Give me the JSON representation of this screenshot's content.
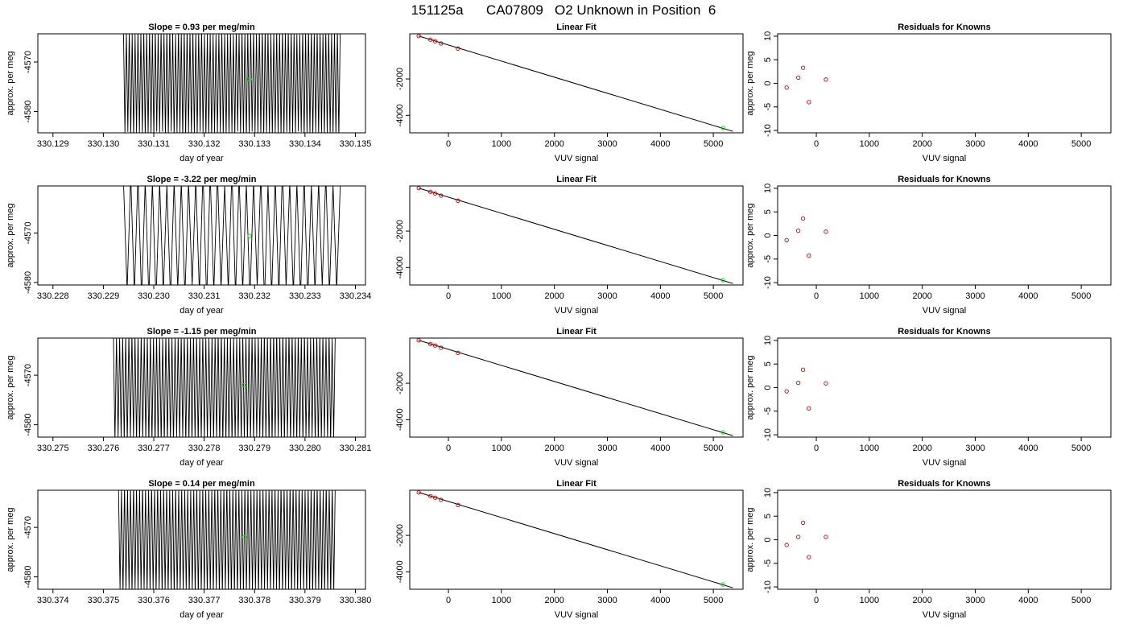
{
  "page": {
    "title": "151125a      CA07809   O2 Unknown in Position  6"
  },
  "chart_data": [
    {
      "type": "line",
      "title": "Slope =  0.93  per meg/min",
      "xlabel": "day of year",
      "ylabel": "approx. per meg",
      "xlim": [
        330.1287,
        330.1352
      ],
      "ylim": [
        -4584.3,
        -4564.3
      ],
      "xticks": [
        "330.129",
        "330.130",
        "330.131",
        "330.132",
        "330.133",
        "330.134",
        "330.135"
      ],
      "yticks": [
        "-4570",
        "-4580"
      ],
      "signal": {
        "x_start": 330.1304,
        "x_end": 330.1347,
        "cycles": 75,
        "low": -4584,
        "high": -4564.5,
        "jitter": 1.6,
        "seed": 11
      },
      "highlight_point": {
        "x": 330.1329,
        "y": -4573.5,
        "color": "#00ee00"
      }
    },
    {
      "type": "scatter",
      "title": "Linear Fit",
      "xlabel": "VUV signal",
      "ylabel": "",
      "xlim": [
        -730,
        5560
      ],
      "ylim": [
        -4960,
        480
      ],
      "xticks": [
        "0",
        "1000",
        "2000",
        "3000",
        "4000",
        "5000"
      ],
      "yticks": [
        "-2000",
        "-4000"
      ],
      "points": {
        "x": [
          -560,
          -340,
          -250,
          -140,
          180
        ],
        "y": [
          360,
          160,
          70,
          -50,
          -330
        ],
        "color": "#cc0000"
      },
      "fit_line": {
        "x": [
          -560,
          5370
        ],
        "y": [
          360,
          -4880
        ]
      },
      "highlight_point": {
        "x": 5180,
        "y": -4700,
        "color": "#00ee00"
      }
    },
    {
      "type": "scatter",
      "title": "Residuals for Knowns",
      "xlabel": "VUV signal",
      "ylabel": "approx. per meg",
      "xlim": [
        -730,
        5560
      ],
      "ylim": [
        -10.5,
        10.5
      ],
      "xticks": [
        "0",
        "1000",
        "2000",
        "3000",
        "4000",
        "5000"
      ],
      "yticks": [
        "10",
        "5",
        "0",
        "-5",
        "-10"
      ],
      "points": {
        "x": [
          -560,
          -340,
          -250,
          -140,
          180
        ],
        "y": [
          -0.9,
          1.2,
          3.3,
          -4.0,
          0.8
        ],
        "color": "#cc0000"
      }
    },
    {
      "type": "line",
      "title": "Slope =  -3.22  per meg/min",
      "xlabel": "day of year",
      "ylabel": "approx. per meg",
      "xlim": [
        330.2277,
        330.2342
      ],
      "ylim": [
        -4580.5,
        -4560.5
      ],
      "xticks": [
        "330.228",
        "330.229",
        "330.230",
        "330.231",
        "330.232",
        "330.233",
        "330.234"
      ],
      "yticks": [
        "-4570",
        "-4580"
      ],
      "signal": {
        "x_start": 330.2294,
        "x_end": 330.2337,
        "cycles": 30,
        "low": -4580.5,
        "high": -4560.5,
        "jitter": 3.5,
        "seed": 23
      },
      "highlight_point": {
        "x": 330.2319,
        "y": -4570.6,
        "color": "#00ee00"
      }
    },
    {
      "type": "scatter",
      "title": "Linear Fit",
      "xlabel": "VUV signal",
      "ylabel": "",
      "xlim": [
        -730,
        5560
      ],
      "ylim": [
        -4960,
        480
      ],
      "xticks": [
        "0",
        "1000",
        "2000",
        "3000",
        "4000",
        "5000"
      ],
      "yticks": [
        "-2000",
        "-4000"
      ],
      "points": {
        "x": [
          -560,
          -340,
          -250,
          -140,
          180
        ],
        "y": [
          360,
          160,
          70,
          -50,
          -330
        ],
        "color": "#cc0000"
      },
      "fit_line": {
        "x": [
          -560,
          5370
        ],
        "y": [
          360,
          -4880
        ]
      },
      "highlight_point": {
        "x": 5180,
        "y": -4700,
        "color": "#00ee00"
      }
    },
    {
      "type": "scatter",
      "title": "Residuals for Knowns",
      "xlabel": "VUV signal",
      "ylabel": "approx. per meg",
      "xlim": [
        -730,
        5560
      ],
      "ylim": [
        -10.5,
        10.5
      ],
      "xticks": [
        "0",
        "1000",
        "2000",
        "3000",
        "4000",
        "5000"
      ],
      "yticks": [
        "10",
        "5",
        "0",
        "-5",
        "-10"
      ],
      "points": {
        "x": [
          -560,
          -340,
          -250,
          -140,
          180
        ],
        "y": [
          -1.0,
          1.0,
          3.6,
          -4.3,
          0.8
        ],
        "color": "#cc0000"
      }
    },
    {
      "type": "line",
      "title": "Slope =  -1.15  per meg/min",
      "xlabel": "day of year",
      "ylabel": "approx. per meg",
      "xlim": [
        330.2747,
        330.2812
      ],
      "ylim": [
        -4582.5,
        -4562.5
      ],
      "xticks": [
        "330.275",
        "330.276",
        "330.277",
        "330.278",
        "330.279",
        "330.280",
        "330.281"
      ],
      "yticks": [
        "-4570",
        "-4580"
      ],
      "signal": {
        "x_start": 330.2762,
        "x_end": 330.2806,
        "cycles": 72,
        "low": -4582.5,
        "high": -4562.5,
        "jitter": 1.8,
        "seed": 37
      },
      "highlight_point": {
        "x": 330.2788,
        "y": -4572.0,
        "color": "#00ee00"
      }
    },
    {
      "type": "scatter",
      "title": "Linear Fit",
      "xlabel": "VUV signal",
      "ylabel": "",
      "xlim": [
        -730,
        5560
      ],
      "ylim": [
        -4960,
        480
      ],
      "xticks": [
        "0",
        "1000",
        "2000",
        "3000",
        "4000",
        "5000"
      ],
      "yticks": [
        "-2000",
        "-4000"
      ],
      "points": {
        "x": [
          -560,
          -340,
          -250,
          -140,
          180
        ],
        "y": [
          360,
          160,
          70,
          -50,
          -330
        ],
        "color": "#cc0000"
      },
      "fit_line": {
        "x": [
          -560,
          5370
        ],
        "y": [
          360,
          -4880
        ]
      },
      "highlight_point": {
        "x": 5180,
        "y": -4700,
        "color": "#00ee00"
      }
    },
    {
      "type": "scatter",
      "title": "Residuals for Knowns",
      "xlabel": "VUV signal",
      "ylabel": "approx. per meg",
      "xlim": [
        -730,
        5560
      ],
      "ylim": [
        -10.5,
        10.5
      ],
      "xticks": [
        "0",
        "1000",
        "2000",
        "3000",
        "4000",
        "5000"
      ],
      "yticks": [
        "10",
        "5",
        "0",
        "-5",
        "-10"
      ],
      "points": {
        "x": [
          -560,
          -340,
          -250,
          -140,
          180
        ],
        "y": [
          -0.8,
          1.0,
          3.8,
          -4.4,
          0.9
        ],
        "color": "#cc0000"
      }
    },
    {
      "type": "line",
      "title": "Slope =  0.14  per meg/min",
      "xlabel": "day of year",
      "ylabel": "approx. per meg",
      "xlim": [
        330.3737,
        330.3802
      ],
      "ylim": [
        -4582.5,
        -4562.5
      ],
      "xticks": [
        "330.374",
        "330.375",
        "330.376",
        "330.377",
        "330.378",
        "330.379",
        "330.380"
      ],
      "yticks": [
        "-4570",
        "-4580"
      ],
      "signal": {
        "x_start": 330.3753,
        "x_end": 330.3796,
        "cycles": 72,
        "low": -4582.5,
        "high": -4562.5,
        "jitter": 1.6,
        "seed": 53
      },
      "highlight_point": {
        "x": 330.3778,
        "y": -4572.0,
        "color": "#00ee00"
      }
    },
    {
      "type": "scatter",
      "title": "Linear Fit",
      "xlabel": "VUV signal",
      "ylabel": "",
      "xlim": [
        -730,
        5560
      ],
      "ylim": [
        -4960,
        480
      ],
      "xticks": [
        "0",
        "1000",
        "2000",
        "3000",
        "4000",
        "5000"
      ],
      "yticks": [
        "-2000",
        "-4000"
      ],
      "points": {
        "x": [
          -560,
          -340,
          -250,
          -140,
          180
        ],
        "y": [
          360,
          160,
          70,
          -50,
          -330
        ],
        "color": "#cc0000"
      },
      "fit_line": {
        "x": [
          -560,
          5370
        ],
        "y": [
          360,
          -4880
        ]
      },
      "highlight_point": {
        "x": 5180,
        "y": -4700,
        "color": "#00ee00"
      }
    },
    {
      "type": "scatter",
      "title": "Residuals for Knowns",
      "xlabel": "VUV signal",
      "ylabel": "approx. per meg",
      "xlim": [
        -730,
        5560
      ],
      "ylim": [
        -10.5,
        10.5
      ],
      "xticks": [
        "0",
        "1000",
        "2000",
        "3000",
        "4000",
        "5000"
      ],
      "yticks": [
        "10",
        "5",
        "0",
        "-5",
        "-10"
      ],
      "points": {
        "x": [
          -560,
          -340,
          -250,
          -140,
          180
        ],
        "y": [
          -1.1,
          0.6,
          3.6,
          -3.7,
          0.6
        ],
        "color": "#cc0000"
      }
    }
  ]
}
